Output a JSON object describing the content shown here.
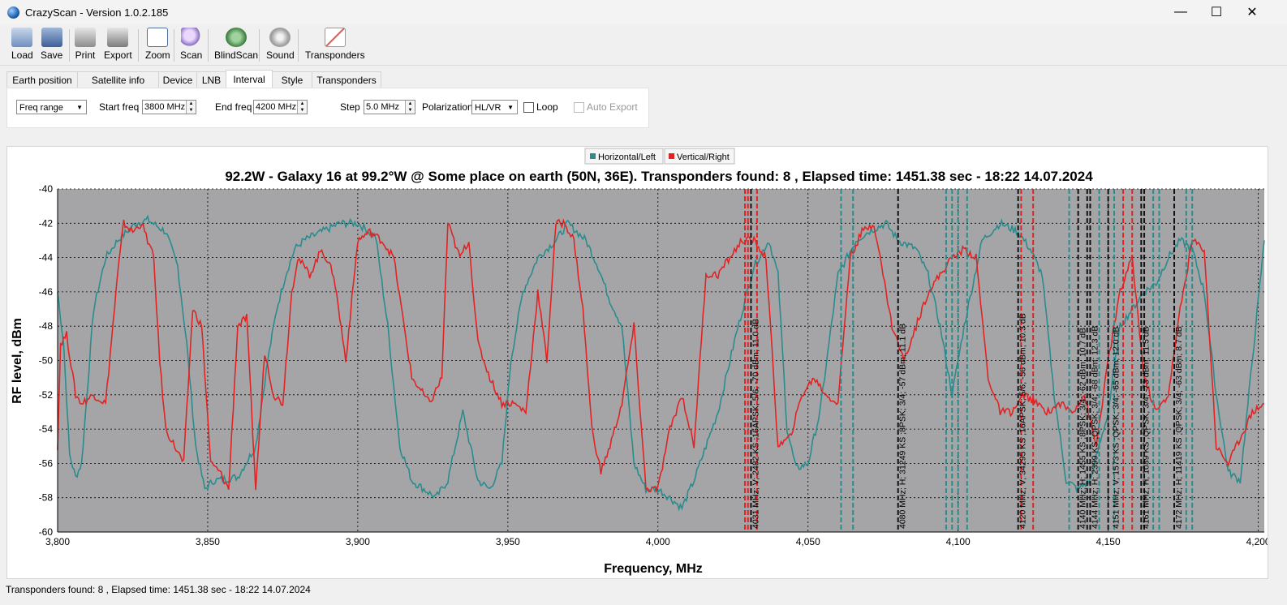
{
  "window": {
    "title": "CrazyScan - Version 1.0.2.185",
    "controls": {
      "minimize": "—",
      "maximize": "☐",
      "close": "✕"
    }
  },
  "toolbar": {
    "load": "Load",
    "save": "Save",
    "print": "Print",
    "export": "Export",
    "zoom": "Zoom",
    "scan": "Scan",
    "blindscan": "BlindScan",
    "sound": "Sound",
    "transponders": "Transponders"
  },
  "tabs": [
    "Earth position",
    "Satellite info",
    "Device",
    "LNB",
    "Interval",
    "Style",
    "Transponders"
  ],
  "active_tab": "Interval",
  "interval": {
    "mode": "Freq range",
    "start_label": "Start freq",
    "start_value": "3800 MHz",
    "end_label": "End freq",
    "end_value": "4200 MHz",
    "step_label": "Step",
    "step_value": "5.0 MHz",
    "pol_label": "Polarization",
    "pol_value": "HL/VR",
    "loop_label": "Loop",
    "autoexport_label": "Auto Export"
  },
  "status": {
    "text": "Transponders found: 8 , Elapsed time: 1451.38 sec - 18:22 14.07.2024"
  },
  "colors": {
    "horizontal": "#2a8c8c",
    "vertical": "#e02424",
    "plot_bg": "#a5a5a8"
  },
  "chart_data": {
    "type": "line",
    "title": "92.2W - Galaxy 16 at 99.2°W @ Some place on earth (50N, 36E). Transponders found: 8 , Elapsed time: 1451.38 sec - 18:22 14.07.2024",
    "xlabel": "Frequency, MHz",
    "ylabel": "RF level, dBm",
    "xlim": [
      3800,
      4202
    ],
    "ylim": [
      -60,
      -40
    ],
    "x_ticks": [
      3800,
      3850,
      3900,
      3950,
      4000,
      4050,
      4100,
      4150,
      4200
    ],
    "x_tick_labels": [
      "3,800",
      "3,850",
      "3,900",
      "3,950",
      "4,000",
      "4,050",
      "4,100",
      "4,150",
      "4,200"
    ],
    "y_ticks": [
      -40,
      -42,
      -44,
      -46,
      -48,
      -50,
      -52,
      -54,
      -56,
      -58,
      -60
    ],
    "grid": true,
    "legend": "top-center",
    "series": [
      {
        "name": "Horizontal/Left",
        "x": [
          3800,
          3802,
          3804,
          3806,
          3808,
          3812,
          3816,
          3820,
          3826,
          3830,
          3836,
          3840,
          3843,
          3846,
          3849,
          3852,
          3860,
          3866,
          3870,
          3873,
          3876,
          3879,
          3882,
          3888,
          3894,
          3900,
          3906,
          3910,
          3914,
          3918,
          3922,
          3926,
          3930,
          3935,
          3940,
          3944,
          3948,
          3951,
          3955,
          3960,
          3966,
          3970,
          3976,
          3980,
          3984,
          3988,
          3992,
          3996,
          4000,
          4004,
          4008,
          4012,
          4016,
          4020,
          4026,
          4032,
          4037,
          4040,
          4043,
          4046,
          4050,
          4054,
          4060,
          4066,
          4070,
          4076,
          4080,
          4086,
          4090,
          4094,
          4098,
          4102,
          4108,
          4114,
          4120,
          4124,
          4128,
          4132,
          4136,
          4140,
          4144,
          4150,
          4154,
          4158,
          4162,
          4166,
          4170,
          4174,
          4178,
          4182,
          4186,
          4190,
          4194,
          4198,
          4202
        ],
        "y": [
          -46,
          -49,
          -55.5,
          -56.8,
          -56,
          -47,
          -44,
          -43,
          -42,
          -41.8,
          -42.5,
          -44.5,
          -49,
          -55,
          -57.5,
          -57,
          -56.8,
          -55,
          -50,
          -47,
          -45,
          -43.5,
          -43,
          -42.5,
          -42,
          -42,
          -42.8,
          -48,
          -55,
          -57,
          -57.5,
          -58,
          -57,
          -53,
          -57,
          -57.5,
          -56,
          -50,
          -46,
          -44,
          -43,
          -42,
          -43,
          -44.5,
          -46.5,
          -48,
          -56,
          -57.5,
          -57.5,
          -58,
          -58.6,
          -57,
          -55,
          -53,
          -48.5,
          -44.5,
          -43,
          -45,
          -54,
          -56.3,
          -56,
          -53,
          -45,
          -43,
          -42.5,
          -42,
          -43,
          -43.5,
          -45,
          -48,
          -52,
          -48,
          -43,
          -42,
          -42.5,
          -43.5,
          -45,
          -52,
          -57,
          -57.5,
          -57,
          -53,
          -48,
          -47,
          -46,
          -45.5,
          -44,
          -43,
          -43.5,
          -46,
          -52,
          -56.5,
          -57,
          -50,
          -43
        ]
      },
      {
        "name": "Vertical/Right",
        "x": [
          3800,
          3801,
          3803,
          3806,
          3808,
          3812,
          3816,
          3820,
          3822,
          3825,
          3828,
          3830,
          3832,
          3834,
          3836,
          3839,
          3842,
          3845,
          3848,
          3851,
          3854,
          3857,
          3860,
          3863,
          3866,
          3869,
          3872,
          3875,
          3878,
          3880,
          3884,
          3888,
          3892,
          3896,
          3900,
          3904,
          3908,
          3912,
          3918,
          3924,
          3928,
          3930,
          3934,
          3937,
          3940,
          3944,
          3948,
          3952,
          3956,
          3960,
          3963,
          3966,
          3969,
          3972,
          3975,
          3978,
          3981,
          3984,
          3988,
          3992,
          3996,
          4000,
          4004,
          4008,
          4012,
          4016,
          4020,
          4024,
          4028,
          4032,
          4036,
          4040,
          4044,
          4048,
          4052,
          4056,
          4060,
          4064,
          4068,
          4072,
          4074,
          4078,
          4082,
          4086,
          4090,
          4094,
          4098,
          4102,
          4106,
          4110,
          4114,
          4118,
          4122,
          4126,
          4130,
          4134,
          4138,
          4142,
          4146,
          4150,
          4154,
          4158,
          4162,
          4166,
          4170,
          4174,
          4178,
          4182,
          4186,
          4190,
          4194,
          4198,
          4202
        ],
        "y": [
          -55,
          -49,
          -48.5,
          -52,
          -52.5,
          -52,
          -52.5,
          -45,
          -42,
          -42.5,
          -42,
          -43,
          -44,
          -50,
          -54,
          -55,
          -56,
          -47,
          -48,
          -56,
          -56.5,
          -57.5,
          -48,
          -47.5,
          -57.5,
          -49.5,
          -52,
          -52.5,
          -46,
          -44,
          -45,
          -43.5,
          -45,
          -50,
          -43,
          -42.5,
          -43,
          -44,
          -51,
          -52.5,
          -51,
          -42,
          -44,
          -43,
          -49,
          -51,
          -52.5,
          -52.5,
          -53,
          -46,
          -50,
          -42,
          -42,
          -43,
          -47,
          -54,
          -56.5,
          -55,
          -52.5,
          -48,
          -57.5,
          -57.5,
          -54,
          -52,
          -55,
          -45,
          -45,
          -44,
          -43,
          -43,
          -44,
          -55,
          -54.5,
          -52,
          -51,
          -52,
          -52.5,
          -44,
          -42.5,
          -42,
          -44,
          -48,
          -50,
          -48,
          -46,
          -45,
          -44,
          -43.5,
          -44,
          -51,
          -53,
          -53,
          -52,
          -52.5,
          -53,
          -52.5,
          -53,
          -52,
          -55,
          -50,
          -46,
          -44,
          -51,
          -53,
          -52,
          -47,
          -43,
          -43.5,
          -55,
          -56,
          -54.5,
          -53,
          -52.5
        ]
      }
    ],
    "markers": [
      {
        "freq": 4029,
        "color": "#e02424"
      },
      {
        "freq": 4030,
        "color": "#e02424"
      },
      {
        "freq": 4031,
        "color": "#111111"
      },
      {
        "freq": 4033,
        "color": "#e02424"
      },
      {
        "freq": 4061,
        "color": "#2a8c8c"
      },
      {
        "freq": 4065,
        "color": "#2a8c8c"
      },
      {
        "freq": 4080,
        "color": "#111111"
      },
      {
        "freq": 4096,
        "color": "#2a8c8c"
      },
      {
        "freq": 4098,
        "color": "#2a8c8c"
      },
      {
        "freq": 4100,
        "color": "#2a8c8c"
      },
      {
        "freq": 4103,
        "color": "#2a8c8c"
      },
      {
        "freq": 4120,
        "color": "#111111"
      },
      {
        "freq": 4121,
        "color": "#e02424"
      },
      {
        "freq": 4125,
        "color": "#e02424"
      },
      {
        "freq": 4137,
        "color": "#2a8c8c"
      },
      {
        "freq": 4140,
        "color": "#111111"
      },
      {
        "freq": 4143,
        "color": "#111111"
      },
      {
        "freq": 4144,
        "color": "#111111"
      },
      {
        "freq": 4147,
        "color": "#2a8c8c"
      },
      {
        "freq": 4150,
        "color": "#111111"
      },
      {
        "freq": 4152,
        "color": "#2a8c8c"
      },
      {
        "freq": 4155,
        "color": "#e02424"
      },
      {
        "freq": 4158,
        "color": "#e02424"
      },
      {
        "freq": 4161,
        "color": "#111111"
      },
      {
        "freq": 4162,
        "color": "#111111"
      },
      {
        "freq": 4165,
        "color": "#2a8c8c"
      },
      {
        "freq": 4167,
        "color": "#2a8c8c"
      },
      {
        "freq": 4172,
        "color": "#111111"
      },
      {
        "freq": 4176,
        "color": "#2a8c8c"
      },
      {
        "freq": 4178,
        "color": "#2a8c8c"
      }
    ],
    "annotations": [
      {
        "freq": 4031,
        "text": "4031 MHz; V; 2482 KS ;16APSK; 5/6; -70 dBm; 11.0 dB"
      },
      {
        "freq": 4080,
        "text": "4080 MHz; H; 31249 KS ;8PSK; 3/4; -57 dBm; 11.1 dB"
      },
      {
        "freq": 4120,
        "text": "4120 MHz; V; 34295 KS ;16APSK; 5/6; -56 dBm; 10.3 dB"
      },
      {
        "freq": 4140,
        "text": "4140 MHz; H; 1455 KS ;8PSK; 3/4; -62 dBm; 10.7 dB"
      },
      {
        "freq": 4144,
        "text": "4144 MHz; H; 2399 KS ;QPSK; 3/4; -68 dBm; 12.3 dB"
      },
      {
        "freq": 4151,
        "text": "4151 MHz; V; 1573 KS ;QPSK; 3/4; -65 dBm; 12.0 dB"
      },
      {
        "freq": 4161,
        "text": "4161 MHz; H; 1039 KS ;QPSK; 3/4; -73 dBm; 11.5 dB"
      },
      {
        "freq": 4172,
        "text": "4172 MHz; H; 11419 KS ;QPSK; 3/4; -63 dBm; 8.7 dB"
      }
    ]
  }
}
